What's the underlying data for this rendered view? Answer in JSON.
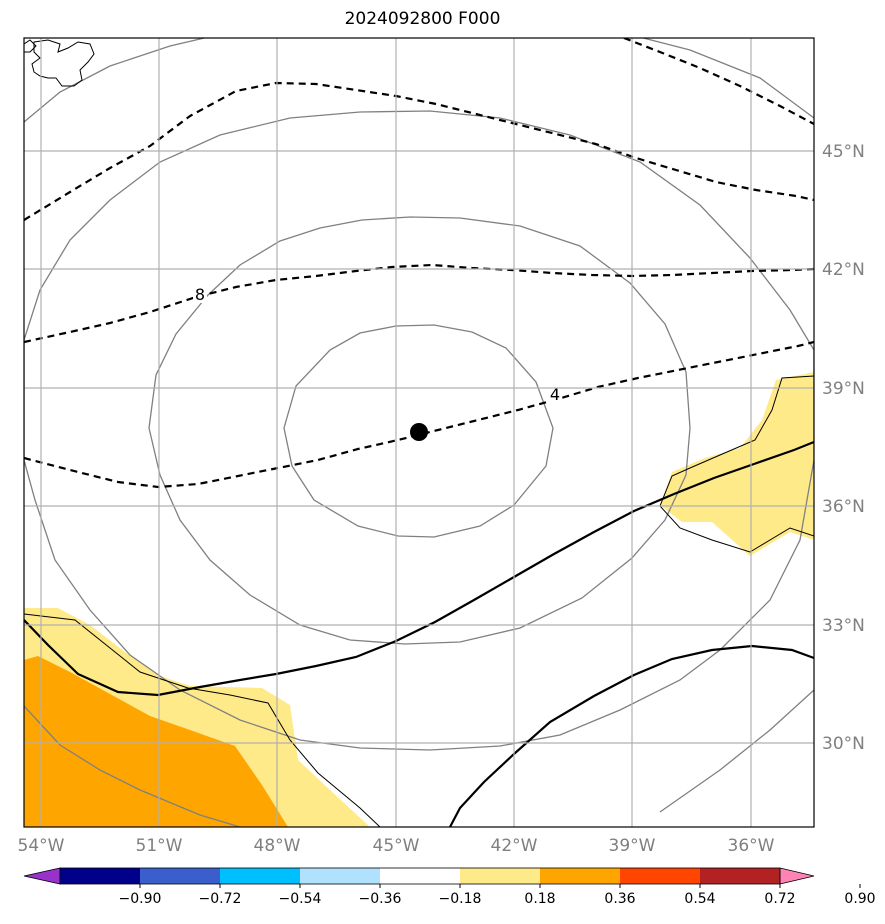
{
  "title": "2024092800 F000",
  "lat_labels": [
    "45°N",
    "42°N",
    "39°N",
    "36°N",
    "33°N",
    "30°N"
  ],
  "lon_labels": [
    "54°W",
    "51°W",
    "48°W",
    "45°W",
    "42°W",
    "39°W",
    "36°W"
  ],
  "contour_labels": [
    "8",
    "4"
  ],
  "colorbar": {
    "ticks": [
      "−0.90",
      "−0.72",
      "−0.54",
      "−0.36",
      "−0.18",
      "0.18",
      "0.36",
      "0.54",
      "0.72",
      "0.90"
    ],
    "colors": [
      "#9932cc",
      "#00008b",
      "#3a5fcd",
      "#00bfff",
      "#b0e2ff",
      "#ffffff",
      "#ffea8a",
      "#ffa500",
      "#ff4500",
      "#b22222",
      "#ff83b4"
    ]
  },
  "center_marker": {
    "lat": 37.8,
    "lon": -44.4
  },
  "map_extent": {
    "lon_min": -54.4,
    "lon_max": -34.4,
    "lat_min": 27.8,
    "lat_max": 47.8
  }
}
